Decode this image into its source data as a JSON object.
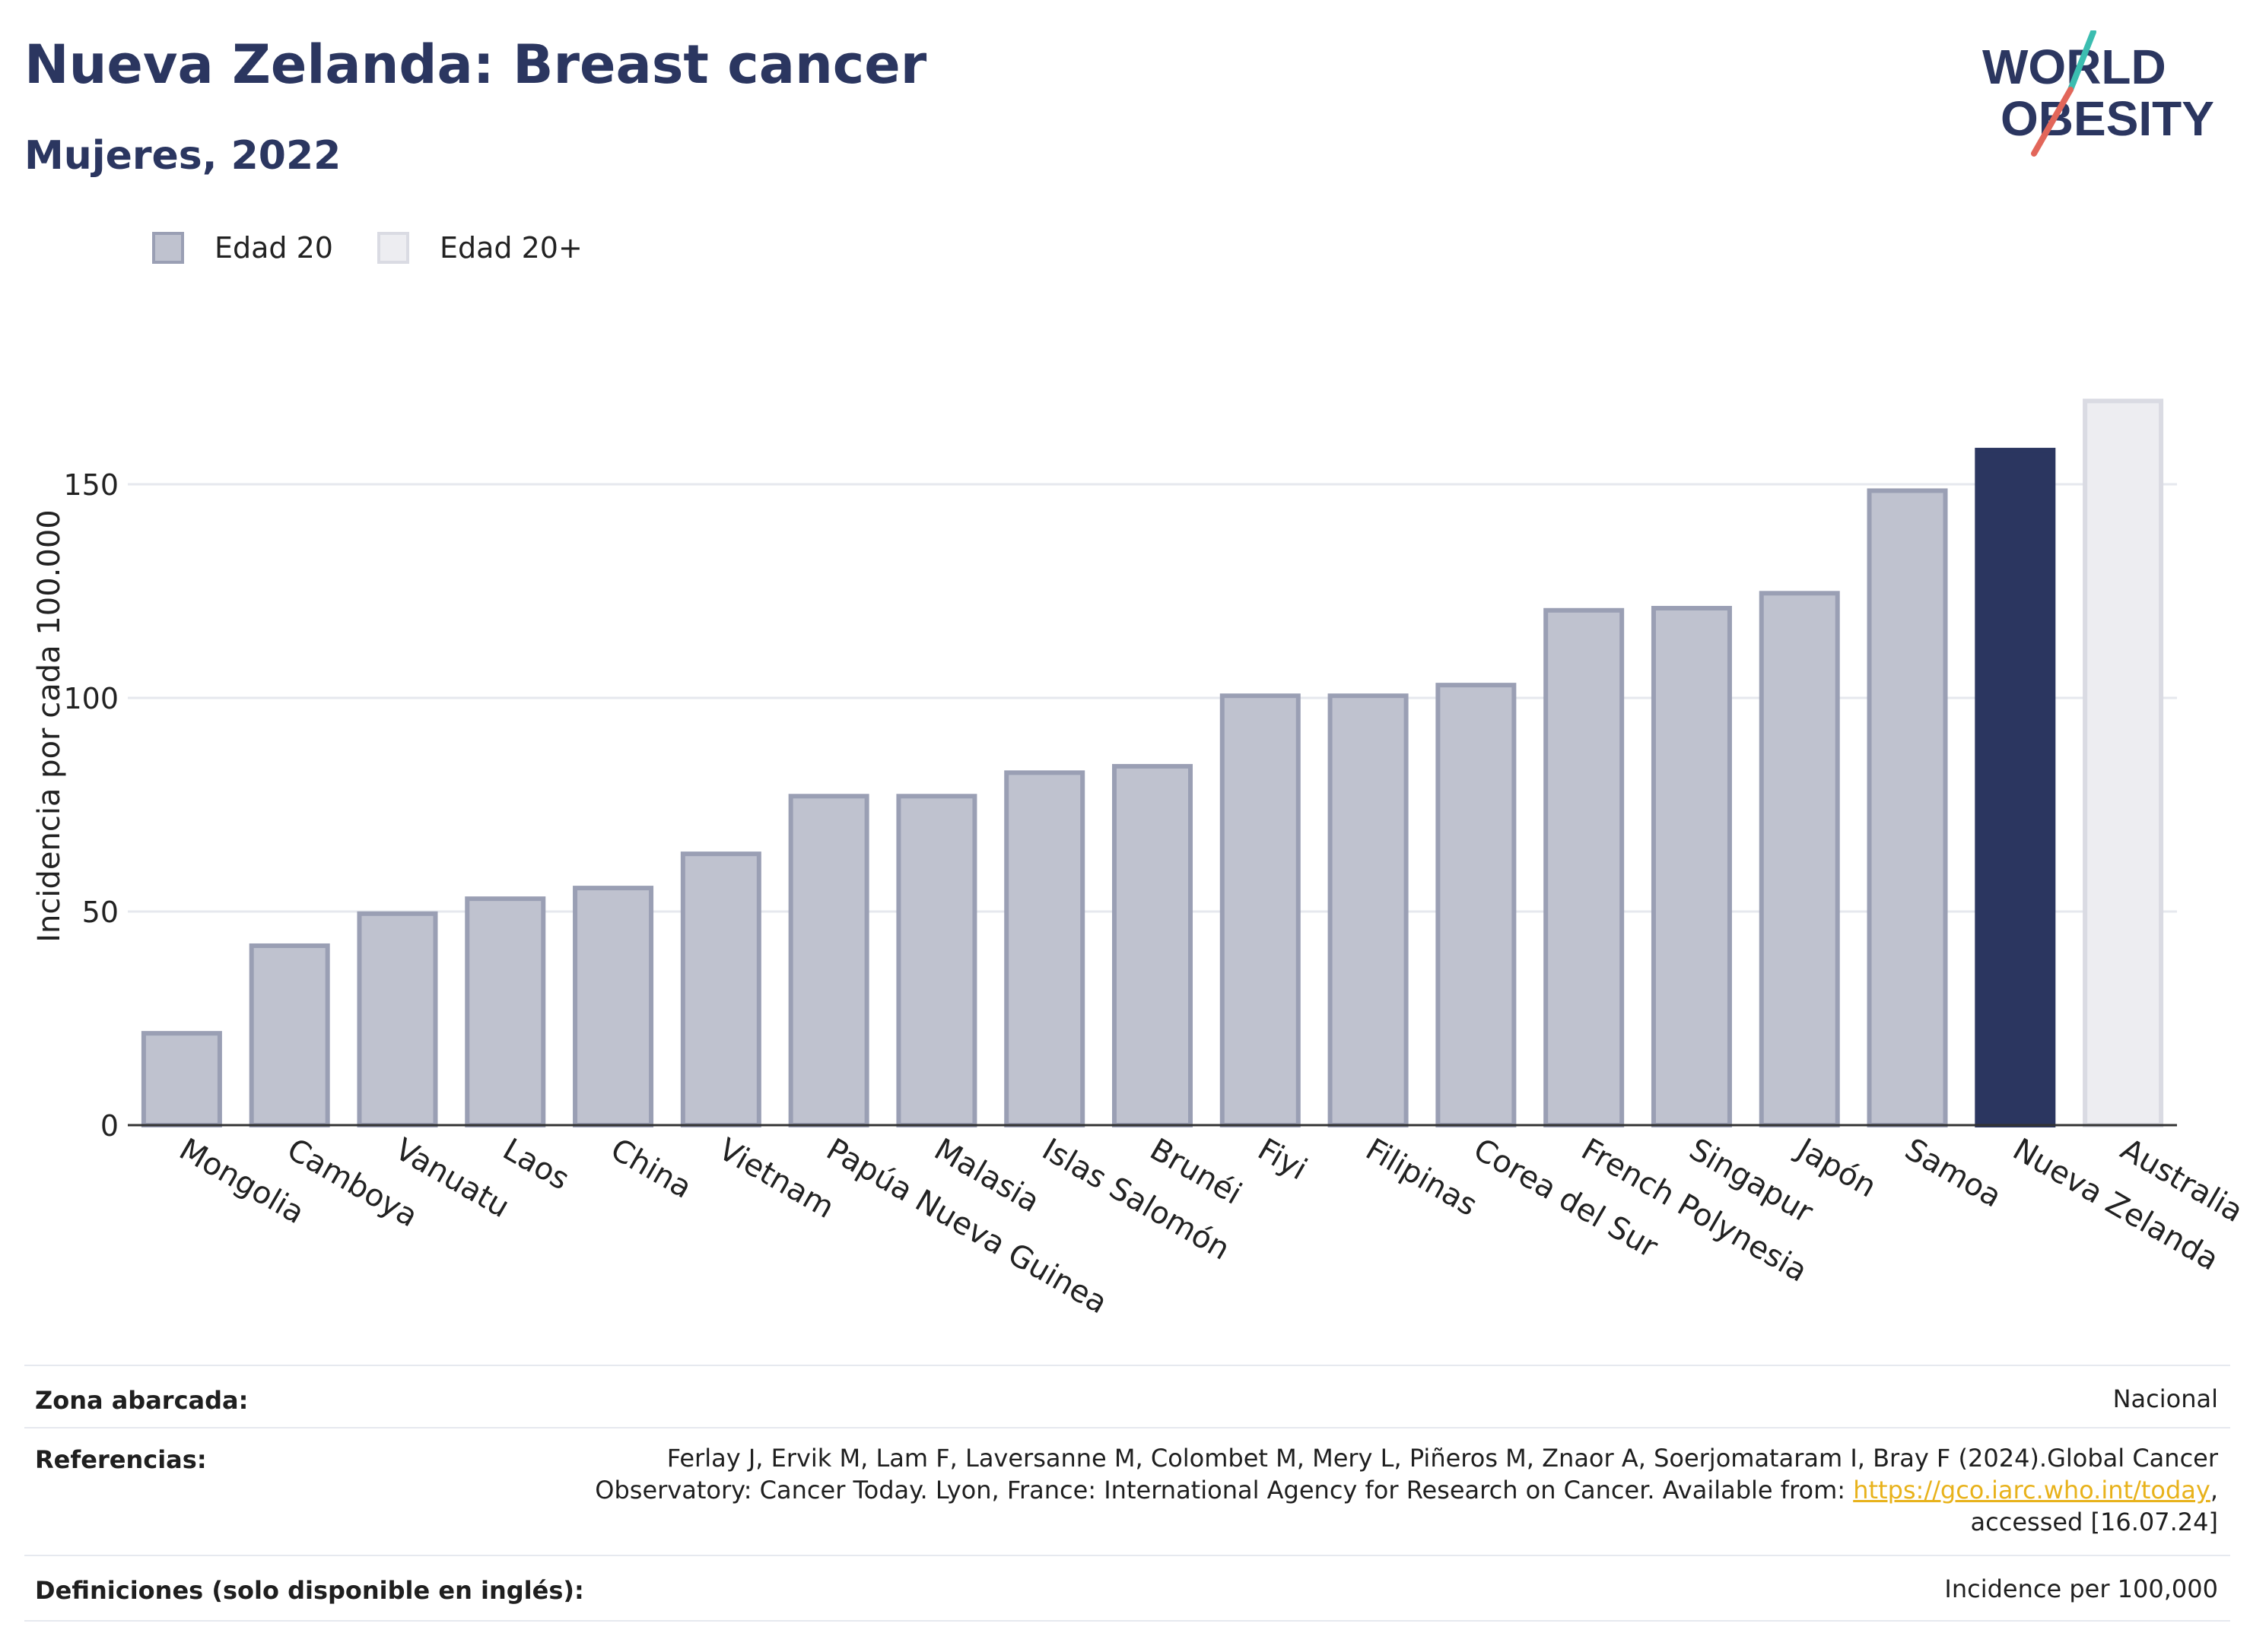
{
  "header": {
    "title": "Nueva Zelanda: Breast cancer",
    "subtitle": "Mujeres, 2022",
    "logo_text_line1": "WORLD",
    "logo_text_line2": "OBESITY"
  },
  "legend": {
    "items": [
      {
        "label": "Edad 20",
        "color": "#bfc2cf",
        "border": "#9a9fb4"
      },
      {
        "label": "Edad 20+",
        "color": "#ededf1",
        "border": "#dadbe3"
      }
    ]
  },
  "colors": {
    "bar_fill": "#bfc2cf",
    "bar_border": "#9a9fb4",
    "highlight_fill": "#2b3660",
    "light_fill": "#ededf1",
    "light_border": "#dadbe3",
    "grid": "#e6e8ee",
    "axis": "#333333",
    "title": "#2b3660",
    "link": "#e8b21b"
  },
  "chart_data": {
    "type": "bar",
    "title": "Nueva Zelanda: Breast cancer",
    "subtitle": "Mujeres, 2022",
    "xlabel": "",
    "ylabel": "Incidencia por cada 100.000",
    "ylim": [
      0,
      175
    ],
    "yticks": [
      0,
      50,
      100,
      150
    ],
    "grid": true,
    "legend_position": "top-left",
    "categories": [
      "Mongolia",
      "Camboya",
      "Vanuatu",
      "Laos",
      "China",
      "Vietnam",
      "Papúa Nueva Guinea",
      "Malasia",
      "Islas Salomón",
      "Brunéi",
      "Fiyi",
      "Filipinas",
      "Corea del Sur",
      "French Polynesia",
      "Singapur",
      "Japón",
      "Samoa",
      "Nueva Zelanda",
      "Australia"
    ],
    "values": [
      21.5,
      42,
      49.5,
      53,
      55.5,
      63.5,
      77,
      77,
      82.5,
      84,
      100.5,
      100.5,
      103,
      120.5,
      121,
      124.5,
      148.5,
      158,
      169.5
    ],
    "series_kind": [
      "Edad 20",
      "Edad 20",
      "Edad 20",
      "Edad 20",
      "Edad 20",
      "Edad 20",
      "Edad 20",
      "Edad 20",
      "Edad 20",
      "Edad 20",
      "Edad 20",
      "Edad 20",
      "Edad 20",
      "Edad 20",
      "Edad 20",
      "Edad 20",
      "Edad 20",
      "highlight",
      "Edad 20+"
    ]
  },
  "footer": {
    "rows": [
      {
        "label": "Zona abarcada:",
        "value": "Nacional"
      },
      {
        "label": "Referencias:",
        "value_line1": "Ferlay J, Ervik M, Lam F, Laversanne M, Colombet M, Mery L, Piñeros M, Znaor A, Soerjomataram I, Bray F (2024).Global Cancer",
        "value_line2_pre": "Observatory: Cancer Today. Lyon, France: International Agency for Research on Cancer. Available from: ",
        "value_link": "https://gco.iarc.who.int/today",
        "value_line2_post": ",",
        "value_line3": "accessed [16.07.24]"
      },
      {
        "label": "Definiciones (solo disponible en inglés):",
        "value": "Incidence per 100,000"
      }
    ]
  }
}
